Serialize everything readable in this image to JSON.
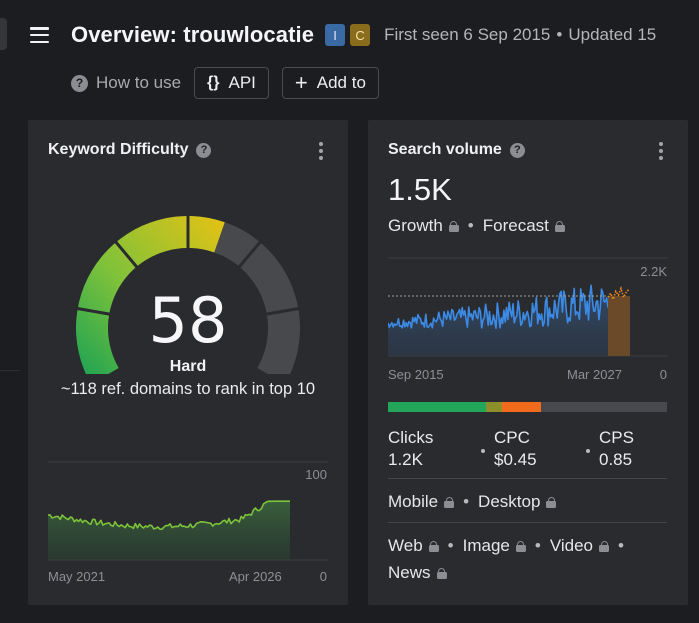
{
  "header": {
    "title": "Overview: trouwlocatie",
    "intent_badges": [
      {
        "label": "I",
        "color": "#3a6aa3"
      },
      {
        "label": "C",
        "color": "#8a6d1c"
      }
    ],
    "first_seen": "First seen 6 Sep 2015",
    "updated": "Updated 15"
  },
  "toolbar": {
    "how_to_use": "How to use",
    "api_icon": "{}",
    "api_label": "API",
    "add_to_label": "Add to"
  },
  "keyword_difficulty": {
    "title": "Keyword Difficulty",
    "value": "58",
    "level": "Hard",
    "description": "~118 ref. domains to rank in top 10",
    "gauge_fraction": 0.58,
    "gauge_colors": [
      "#1fa35a",
      "#6ec03b",
      "#d8c715",
      "#f1a10e",
      "#e35a1f"
    ],
    "chart": {
      "x_start_label": "May 2021",
      "x_end_label": "Apr 2026",
      "y_max_label": "100",
      "y_min_label": "0"
    }
  },
  "search_volume": {
    "title": "Search volume",
    "value": "1.5K",
    "growth_label": "Growth",
    "forecast_label": "Forecast",
    "chart": {
      "x_start_label": "Sep 2015",
      "x_end_label": "Mar 2027",
      "y_max_label": "2.2K",
      "y_min_label": "0"
    },
    "distribution": [
      {
        "color": "#23a55a",
        "share": 0.35
      },
      {
        "color": "#8c8f2a",
        "share": 0.06
      },
      {
        "color": "#f26a1b",
        "share": 0.14
      },
      {
        "color": "#48494e",
        "share": 0.45
      }
    ],
    "metrics": [
      {
        "label": "Clicks",
        "value": "1.2K"
      },
      {
        "label": "CPC",
        "value": "$0.45"
      },
      {
        "label": "CPS",
        "value": "0.85"
      }
    ],
    "devices": [
      "Mobile",
      "Desktop"
    ],
    "serp_types": [
      "Web",
      "Image",
      "Video",
      "News"
    ]
  },
  "icons": {
    "menu": "hamburger-icon",
    "help": "question-circle-icon",
    "more": "kebab-menu-icon",
    "lock": "lock-icon",
    "plus": "plus-icon"
  }
}
